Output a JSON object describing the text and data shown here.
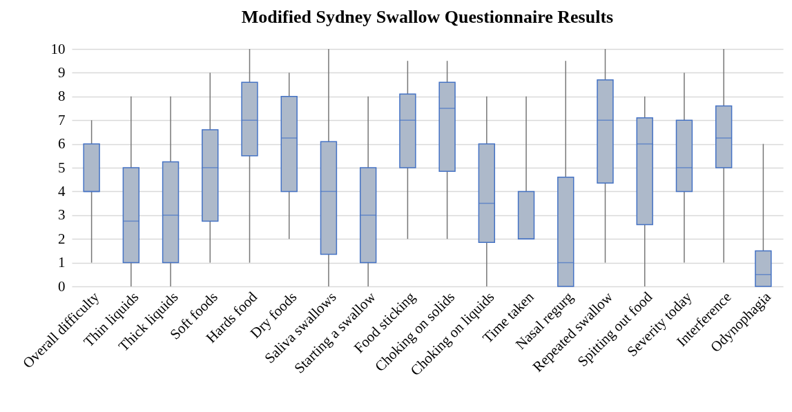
{
  "chart_data": {
    "type": "box",
    "title": "Modified Sydney Swallow Questionnaire Results",
    "categories": [
      "Overall difficulty",
      "Thin liquids",
      "Thick liquids",
      "Soft foods",
      "Hards food",
      "Dry foods",
      "Saliva swallows",
      "Starting a swallow",
      "Food sticking",
      "Choking on solids",
      "Choking on liquids",
      "Time taken",
      "Nasal regurg",
      "Repeated swallow",
      "Spitting out food",
      "Severity today",
      "Interference",
      "Odynophagia"
    ],
    "boxes": [
      {
        "low": 1,
        "q1": 4,
        "median": 4,
        "q3": 6,
        "high": 7
      },
      {
        "low": 0,
        "q1": 1,
        "median": 2.75,
        "q3": 5,
        "high": 8
      },
      {
        "low": 0,
        "q1": 1,
        "median": 3,
        "q3": 5.25,
        "high": 8
      },
      {
        "low": 1,
        "q1": 2.75,
        "median": 5,
        "q3": 6.6,
        "high": 9
      },
      {
        "low": 1,
        "q1": 5.5,
        "median": 7,
        "q3": 8.6,
        "high": 10
      },
      {
        "low": 2,
        "q1": 4,
        "median": 6.25,
        "q3": 8,
        "high": 9
      },
      {
        "low": 0,
        "q1": 1.35,
        "median": 4,
        "q3": 6.1,
        "high": 10
      },
      {
        "low": 0,
        "q1": 1,
        "median": 3,
        "q3": 5,
        "high": 8
      },
      {
        "low": 2,
        "q1": 5,
        "median": 7,
        "q3": 8.1,
        "high": 9.5
      },
      {
        "low": 2,
        "q1": 4.85,
        "median": 7.5,
        "q3": 8.6,
        "high": 9.5
      },
      {
        "low": 0,
        "q1": 1.85,
        "median": 3.5,
        "q3": 6,
        "high": 8
      },
      {
        "low": 2,
        "q1": 2,
        "median": 2,
        "q3": 4,
        "high": 8
      },
      {
        "low": 0,
        "q1": 0,
        "median": 1,
        "q3": 4.6,
        "high": 9.5
      },
      {
        "low": 1,
        "q1": 4.35,
        "median": 7,
        "q3": 8.7,
        "high": 10
      },
      {
        "low": 0,
        "q1": 2.6,
        "median": 6,
        "q3": 7.1,
        "high": 8
      },
      {
        "low": 1,
        "q1": 4,
        "median": 5,
        "q3": 7,
        "high": 9
      },
      {
        "low": 1,
        "q1": 5,
        "median": 6.25,
        "q3": 7.6,
        "high": 10
      },
      {
        "low": 0,
        "q1": 0,
        "median": 0.5,
        "q3": 1.5,
        "high": 6
      }
    ],
    "color": "#adb9ca",
    "ylim": [
      0,
      10
    ],
    "yticks": [
      0,
      1,
      2,
      3,
      4,
      5,
      6,
      7,
      8,
      9,
      10
    ],
    "grid": "y"
  }
}
